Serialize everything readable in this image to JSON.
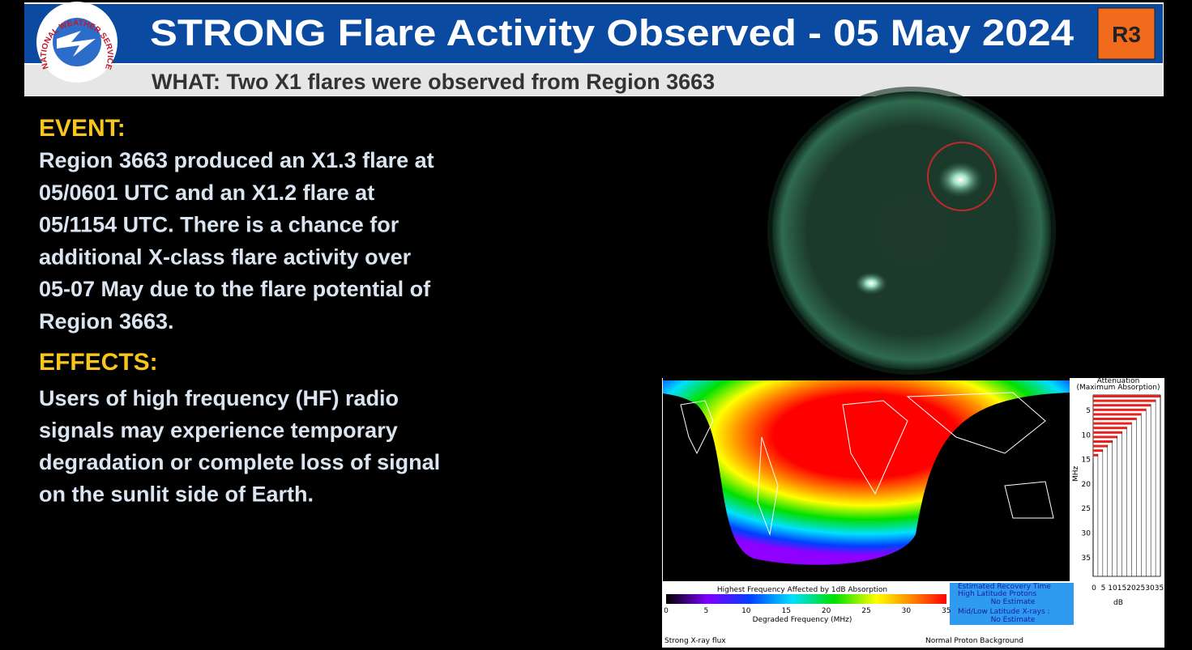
{
  "header": {
    "logo_text": "NATIONAL WEATHER SERVICE",
    "title": "STRONG Flare Activity Observed - 05 May 2024",
    "scale_badge": "R3",
    "subtitle": "WHAT: Two X1 flares were observed from Region 3663"
  },
  "event": {
    "heading": "EVENT:",
    "lines": [
      "Region 3663 produced an X1.3 flare at",
      "05/0601 UTC and an X1.2 flare at",
      "05/1154 UTC. There is a chance for",
      "additional X-class flare activity over",
      "05-07 May due to the flare potential of",
      "Region 3663."
    ]
  },
  "effects": {
    "heading": "EFFECTS:",
    "lines": [
      "Users of high frequency (HF) radio",
      "signals may experience temporary",
      "degradation or complete loss of signal",
      "on the sunlit side of Earth."
    ]
  },
  "drap": {
    "attenuation_title": "Attenuation",
    "attenuation_subtitle": "(Maximum Absorption)",
    "mhz_label": "MHz",
    "mhz_ticks": [
      "5",
      "10",
      "15",
      "20",
      "25",
      "30",
      "35"
    ],
    "db_ticks": [
      "0",
      "5",
      "10",
      "15",
      "20",
      "25",
      "30",
      "35"
    ],
    "db_label": "dB",
    "colorbar_title": "Highest Frequency Affected by 1dB Absorption",
    "colorbar_ticks": [
      "0",
      "5",
      "10",
      "15",
      "20",
      "25",
      "30",
      "35"
    ],
    "colorbar_label": "Degraded Frequency (MHz)",
    "recovery": {
      "title": "Estimated Recovery Time",
      "high_lat_label": "High Latitude Protons",
      "high_lat_value": "No Estimate",
      "mid_low_label": "Mid/Low Latitude X-rays :",
      "mid_low_value": "No Estimate"
    },
    "xray_status": "Strong X-ray flux",
    "proton_status": "Normal Proton Background"
  }
}
